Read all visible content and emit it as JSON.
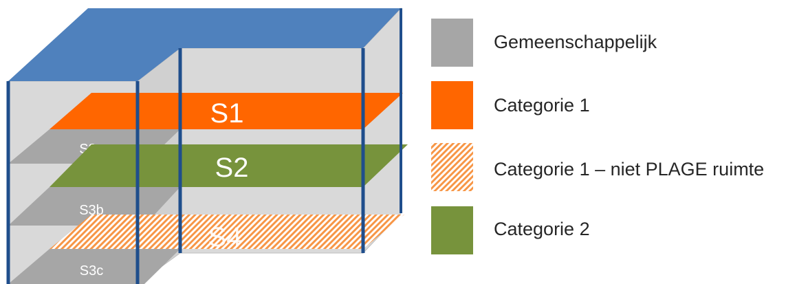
{
  "colors": {
    "gemeenschappelijk": "#a6a6a6",
    "categorie1": "#ff6600",
    "categorie2": "#77933c",
    "roof": "#4f81bd",
    "walls": "#d9d9d9",
    "columns": "#1f4e8c"
  },
  "diagram": {
    "slabs": {
      "s1": "S1",
      "s2": "S2",
      "s4": "S4",
      "s3a": "S3a",
      "s3b": "S3b",
      "s3c": "S3c"
    }
  },
  "legend": {
    "items": [
      {
        "label": "Gemeenschappelijk",
        "swatch": "solid-grey"
      },
      {
        "label": "Categorie 1",
        "swatch": "solid-orange"
      },
      {
        "label": "Categorie 1 – niet PLAGE ruimte",
        "swatch": "hatched-orange"
      },
      {
        "label": "Categorie 2",
        "swatch": "solid-green"
      }
    ]
  }
}
